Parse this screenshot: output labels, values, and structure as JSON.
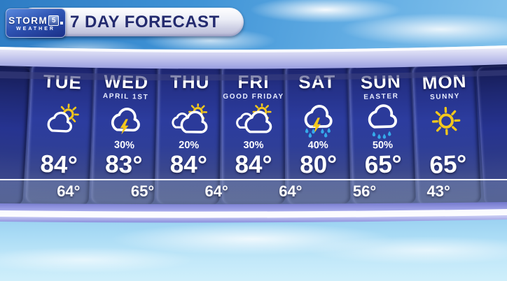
{
  "header": {
    "title": "7 DAY FORECAST",
    "logo": {
      "storm": "STORM",
      "number": "5",
      "weather": "WEATHER"
    }
  },
  "forecast": {
    "columns": [
      {
        "day": "TUE",
        "subtitle": "",
        "icon": "partly-cloudy",
        "precip": "",
        "high": "84°"
      },
      {
        "day": "WED",
        "subtitle": "APRIL 1ST",
        "icon": "thunderstorm",
        "precip": "30%",
        "high": "83°"
      },
      {
        "day": "THU",
        "subtitle": "",
        "icon": "mostly-cloudy-sun",
        "precip": "20%",
        "high": "84°"
      },
      {
        "day": "FRI",
        "subtitle": "GOOD FRIDAY",
        "icon": "mostly-cloudy-sun",
        "precip": "30%",
        "high": "84°"
      },
      {
        "day": "SAT",
        "subtitle": "",
        "icon": "thunderstorm-rain",
        "precip": "40%",
        "high": "80°"
      },
      {
        "day": "SUN",
        "subtitle": "EASTER",
        "icon": "rain",
        "precip": "50%",
        "high": "65°"
      },
      {
        "day": "MON",
        "subtitle": "SUNNY",
        "icon": "sunny",
        "precip": "",
        "high": "65°"
      }
    ],
    "lows": [
      "64°",
      "65°",
      "64°",
      "64°",
      "56°",
      "43°"
    ]
  },
  "colors": {
    "sun_yellow": "#f4c71c",
    "rain_cyan": "#35a9ea",
    "cloud_white": "#ffffff",
    "panel_navy": "#2b3a9a",
    "title_navy": "#232a6e"
  },
  "chart_data": {
    "type": "table",
    "title": "7 DAY FORECAST",
    "categories": [
      "TUE",
      "WED",
      "THU",
      "FRI",
      "SAT",
      "SUN",
      "MON"
    ],
    "subtitles": [
      "",
      "APRIL 1ST",
      "",
      "GOOD FRIDAY",
      "",
      "EASTER",
      "SUNNY"
    ],
    "conditions": [
      "partly-cloudy",
      "thunderstorms",
      "mostly-cloudy-sun",
      "mostly-cloudy-sun",
      "thunderstorms-rain",
      "rain",
      "sunny"
    ],
    "precip_chance_pct": [
      null,
      30,
      20,
      30,
      40,
      50,
      null
    ],
    "highs_f": [
      84,
      83,
      84,
      84,
      80,
      65,
      65
    ],
    "lows_f": [
      64,
      65,
      64,
      64,
      56,
      43
    ]
  }
}
